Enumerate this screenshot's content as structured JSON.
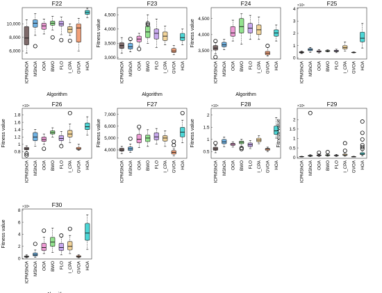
{
  "chart_data": [
    {
      "type": "box",
      "title": "F22",
      "xlabel": "Algorithm",
      "ylabel": "",
      "ylim": [
        4800,
        12400
      ],
      "yticks": [
        6000,
        8000,
        10000
      ],
      "ytick_labels": [
        "6,000",
        "8,000",
        "10,000"
      ],
      "categories": [
        "ICPMShOA",
        "MShOA",
        "OOA",
        "BWO",
        "FLO",
        "I_CPA",
        "GVOA",
        "HOA"
      ],
      "boxes": [
        {
          "min": 5700,
          "q1": 6900,
          "median": 7900,
          "q3": 9600,
          "max": 10600,
          "outliers": []
        },
        {
          "min": 8300,
          "q1": 9500,
          "median": 10100,
          "q3": 10600,
          "max": 11500,
          "outliers": [
            6700
          ]
        },
        {
          "min": 8500,
          "q1": 9200,
          "median": 9700,
          "q3": 10100,
          "max": 10700,
          "outliers": []
        },
        {
          "min": 9100,
          "q1": 9800,
          "median": 10100,
          "q3": 10400,
          "max": 11100,
          "outliers": [
            8000
          ]
        },
        {
          "min": 8400,
          "q1": 9700,
          "median": 10000,
          "q3": 10400,
          "max": 11000,
          "outliers": [
            7600
          ]
        },
        {
          "min": 8300,
          "q1": 8700,
          "median": 9200,
          "q3": 9600,
          "max": 10000,
          "outliers": [
            7500
          ]
        },
        {
          "min": 6000,
          "q1": 7300,
          "median": 9400,
          "q3": 10000,
          "max": 10800,
          "outliers": []
        },
        {
          "min": 10900,
          "q1": 11400,
          "median": 11700,
          "q3": 12000,
          "max": 12300,
          "outliers": []
        }
      ]
    },
    {
      "type": "box",
      "title": "F23",
      "xlabel": "Algorithm",
      "ylabel": "Fitness value",
      "ylim": [
        2950,
        4750
      ],
      "yticks": [
        3000,
        3500,
        4000,
        4500
      ],
      "ytick_labels": [
        "3,000",
        "3,500",
        "4,000",
        "4,500"
      ],
      "categories": [
        "ICPMShOA",
        "MShOA",
        "OOA",
        "BWO",
        "FLO",
        "I_CPA",
        "GVOA",
        "HOA"
      ],
      "boxes": [
        {
          "min": 3150,
          "q1": 3320,
          "median": 3420,
          "q3": 3520,
          "max": 3700,
          "outliers": []
        },
        {
          "min": 3200,
          "q1": 3300,
          "median": 3380,
          "q3": 3500,
          "max": 3600,
          "outliers": [
            3650
          ]
        },
        {
          "min": 3400,
          "q1": 3550,
          "median": 3650,
          "q3": 3750,
          "max": 3850,
          "outliers": [
            3300
          ]
        },
        {
          "min": 3500,
          "q1": 3700,
          "median": 3900,
          "q3": 4100,
          "max": 4500,
          "outliers": [
            4150,
            4200
          ]
        },
        {
          "min": 3350,
          "q1": 3650,
          "median": 3850,
          "q3": 4000,
          "max": 4350,
          "outliers": []
        },
        {
          "min": 3450,
          "q1": 3600,
          "median": 3750,
          "q3": 3900,
          "max": 4100,
          "outliers": []
        },
        {
          "min": 3100,
          "q1": 3180,
          "median": 3230,
          "q3": 3320,
          "max": 3420,
          "outliers": []
        },
        {
          "min": 3450,
          "q1": 3600,
          "median": 3700,
          "q3": 3850,
          "max": 4000,
          "outliers": []
        }
      ]
    },
    {
      "type": "box",
      "title": "F24",
      "xlabel": "Algorithm",
      "ylabel": "Fitness value",
      "ylim": [
        3240,
        4840
      ],
      "yticks": [
        3500,
        4000,
        4500
      ],
      "ytick_labels": [
        "3,500",
        "4,000",
        "4,500"
      ],
      "categories": [
        "ICPMShOA",
        "MShOA",
        "OOA",
        "BWO",
        "FLO",
        "I_CPA",
        "GVOA",
        "HOA"
      ],
      "boxes": [
        {
          "min": 3400,
          "q1": 3520,
          "median": 3580,
          "q3": 3660,
          "max": 3750,
          "outliers": [
            3800,
            3300
          ]
        },
        {
          "min": 3530,
          "q1": 3620,
          "median": 3680,
          "q3": 3760,
          "max": 3850,
          "outliers": []
        },
        {
          "min": 3800,
          "q1": 3950,
          "median": 4050,
          "q3": 4250,
          "max": 4450,
          "outliers": []
        },
        {
          "min": 3700,
          "q1": 4050,
          "median": 4250,
          "q3": 4500,
          "max": 4650,
          "outliers": []
        },
        {
          "min": 3850,
          "q1": 4050,
          "median": 4200,
          "q3": 4350,
          "max": 4600,
          "outliers": []
        },
        {
          "min": 3850,
          "q1": 4000,
          "median": 4150,
          "q3": 4300,
          "max": 4550,
          "outliers": []
        },
        {
          "min": 3330,
          "q1": 3370,
          "median": 3420,
          "q3": 3480,
          "max": 3600,
          "outliers": [
            3650
          ]
        },
        {
          "min": 3800,
          "q1": 3950,
          "median": 4050,
          "q3": 4150,
          "max": 4300,
          "outliers": []
        }
      ]
    },
    {
      "type": "box",
      "title": "F25",
      "xlabel": "",
      "ylabel": "",
      "multiplier": "×10⁴",
      "ylim": [
        -0.1,
        4.1
      ],
      "yticks": [
        0,
        1,
        2,
        3,
        4
      ],
      "ytick_labels": [
        "0",
        "1",
        "2",
        "3",
        "4"
      ],
      "categories": [
        "ICPMShOA",
        "MShOA",
        "OOA",
        "BWO",
        "FLO",
        "I_CPA",
        "GVOA",
        "HOA"
      ],
      "boxes": [
        {
          "min": 0.35,
          "q1": 0.4,
          "median": 0.44,
          "q3": 0.5,
          "max": 0.55,
          "outliers": []
        },
        {
          "min": 0.45,
          "q1": 0.58,
          "median": 0.66,
          "q3": 0.76,
          "max": 0.85,
          "outliers": []
        },
        {
          "min": 0.4,
          "q1": 0.47,
          "median": 0.52,
          "q3": 0.58,
          "max": 0.68,
          "outliers": []
        },
        {
          "min": 0.48,
          "q1": 0.52,
          "median": 0.56,
          "q3": 0.6,
          "max": 0.65,
          "outliers": []
        },
        {
          "min": 0.42,
          "q1": 0.5,
          "median": 0.55,
          "q3": 0.62,
          "max": 0.7,
          "outliers": []
        },
        {
          "min": 0.55,
          "q1": 0.72,
          "median": 0.85,
          "q3": 1.0,
          "max": 1.3,
          "outliers": []
        },
        {
          "min": 0.4,
          "q1": 0.42,
          "median": 0.44,
          "q3": 0.46,
          "max": 0.48,
          "outliers": []
        },
        {
          "min": 0.8,
          "q1": 1.3,
          "median": 1.6,
          "q3": 2.1,
          "max": 2.8,
          "outliers": []
        }
      ]
    },
    {
      "type": "box",
      "title": "F26",
      "xlabel": "",
      "ylabel": "Fitness value",
      "multiplier": "×10⁴",
      "ylim": [
        0.62,
        1.98
      ],
      "yticks": [
        0.8,
        1.0,
        1.2,
        1.4,
        1.6,
        1.8
      ],
      "ytick_labels": [
        "0.8",
        "1",
        "1.2",
        "1.4",
        "1.6",
        "1.8"
      ],
      "categories": [
        "ICPMShOA",
        "MShOA",
        "OOA",
        "BWO",
        "FLO",
        "I_CPA",
        "GVOA",
        "HOA"
      ],
      "boxes": [
        {
          "min": 0.8,
          "q1": 0.85,
          "median": 0.88,
          "q3": 0.92,
          "max": 0.96,
          "outliers": [
            0.75,
            0.7
          ]
        },
        {
          "min": 0.95,
          "q1": 1.1,
          "median": 1.2,
          "q3": 1.32,
          "max": 1.4,
          "outliers": []
        },
        {
          "min": 1.0,
          "q1": 1.08,
          "median": 1.13,
          "q3": 1.2,
          "max": 1.28,
          "outliers": [
            0.88
          ]
        },
        {
          "min": 1.2,
          "q1": 1.28,
          "median": 1.32,
          "q3": 1.37,
          "max": 1.45,
          "outliers": []
        },
        {
          "min": 1.0,
          "q1": 1.1,
          "median": 1.16,
          "q3": 1.24,
          "max": 1.35,
          "outliers": [
            0.95
          ]
        },
        {
          "min": 1.05,
          "q1": 1.2,
          "median": 1.28,
          "q3": 1.38,
          "max": 1.55,
          "outliers": [
            1.85
          ]
        },
        {
          "min": 0.84,
          "q1": 0.86,
          "median": 0.88,
          "q3": 0.92,
          "max": 1.0,
          "outliers": []
        },
        {
          "min": 1.25,
          "q1": 1.4,
          "median": 1.48,
          "q3": 1.58,
          "max": 1.75,
          "outliers": []
        }
      ]
    },
    {
      "type": "box",
      "title": "F27",
      "xlabel": "",
      "ylabel": "Fitness value",
      "ylim": [
        3300,
        7500
      ],
      "yticks": [
        4000,
        5000,
        6000,
        7000
      ],
      "ytick_labels": [
        "4,000",
        "5,000",
        "6,000",
        "7,000"
      ],
      "categories": [
        "ICPMShOA",
        "MShOA",
        "OOA",
        "BWO",
        "FLO",
        "I_CPA",
        "GVOA",
        "HOA"
      ],
      "boxes": [
        {
          "min": 3700,
          "q1": 3900,
          "median": 4000,
          "q3": 4150,
          "max": 4300,
          "outliers": []
        },
        {
          "min": 3800,
          "q1": 3950,
          "median": 4100,
          "q3": 4250,
          "max": 4500,
          "outliers": [
            4950
          ]
        },
        {
          "min": 4200,
          "q1": 4600,
          "median": 4900,
          "q3": 5300,
          "max": 5700,
          "outliers": [
            5950
          ]
        },
        {
          "min": 4300,
          "q1": 4700,
          "median": 5000,
          "q3": 5250,
          "max": 5700,
          "outliers": []
        },
        {
          "min": 4500,
          "q1": 4850,
          "median": 5100,
          "q3": 5450,
          "max": 5800,
          "outliers": []
        },
        {
          "min": 4300,
          "q1": 4750,
          "median": 5000,
          "q3": 5200,
          "max": 5600,
          "outliers": []
        },
        {
          "min": 3500,
          "q1": 3650,
          "median": 3800,
          "q3": 3950,
          "max": 4100,
          "outliers": [
            4400,
            4700
          ]
        },
        {
          "min": 4600,
          "q1": 5100,
          "median": 5500,
          "q3": 5900,
          "max": 6500,
          "outliers": [
            7100
          ]
        }
      ]
    },
    {
      "type": "box",
      "title": "F28",
      "xlabel": "",
      "ylabel": "Fitness value",
      "multiplier": "×10⁴",
      "ylim": [
        0.22,
        2.28
      ],
      "yticks": [
        0.5,
        1.0,
        1.5,
        2.0
      ],
      "ytick_labels": [
        "0.5",
        "1",
        "1.5",
        "2"
      ],
      "categories": [
        "ICPMShOA",
        "MShOA",
        "OOA",
        "BWO",
        "FLO",
        "I_CPA",
        "GVOA",
        "HOA"
      ],
      "boxes": [
        {
          "min": 0.45,
          "q1": 0.55,
          "median": 0.6,
          "q3": 0.68,
          "max": 0.75,
          "outliers": [
            0.85
          ]
        },
        {
          "min": 0.7,
          "q1": 0.82,
          "median": 0.9,
          "q3": 1.0,
          "max": 1.1,
          "outliers": []
        },
        {
          "min": 0.68,
          "q1": 0.75,
          "median": 0.8,
          "q3": 0.84,
          "max": 0.9,
          "outliers": []
        },
        {
          "min": 0.7,
          "q1": 0.82,
          "median": 0.88,
          "q3": 0.93,
          "max": 1.0,
          "outliers": [
            0.65,
            0.6
          ]
        },
        {
          "min": 0.62,
          "q1": 0.7,
          "median": 0.78,
          "q3": 0.85,
          "max": 0.95,
          "outliers": []
        },
        {
          "min": 0.82,
          "q1": 0.9,
          "median": 0.97,
          "q3": 1.05,
          "max": 1.15,
          "outliers": []
        },
        {
          "min": 0.5,
          "q1": 0.55,
          "median": 0.6,
          "q3": 0.63,
          "max": 0.68,
          "outliers": []
        },
        {
          "min": 1.05,
          "q1": 1.2,
          "median": 1.35,
          "q3": 1.55,
          "max": 1.9,
          "outliers": []
        }
      ]
    },
    {
      "type": "box",
      "title": "F29",
      "xlabel": "",
      "ylabel": "Fitness value",
      "multiplier": "×10⁵",
      "ylim": [
        -0.05,
        2.6
      ],
      "yticks": [
        0,
        0.5,
        1.0,
        1.5,
        2.0
      ],
      "ytick_labels": [
        "0",
        "0.5",
        "1",
        "1.5",
        "2"
      ],
      "categories": [
        "ICPMShOA",
        "MShOA",
        "OOA",
        "BWO",
        "FLO",
        "I_CPA",
        "GVOA",
        "HOA"
      ],
      "boxes": [
        {
          "min": 0.02,
          "q1": 0.03,
          "median": 0.04,
          "q3": 0.05,
          "max": 0.06,
          "outliers": []
        },
        {
          "min": 0.04,
          "q1": 0.06,
          "median": 0.08,
          "q3": 0.11,
          "max": 0.14,
          "outliers": [
            2.35
          ]
        },
        {
          "min": 0.05,
          "q1": 0.08,
          "median": 0.1,
          "q3": 0.13,
          "max": 0.18,
          "outliers": [
            0.25
          ]
        },
        {
          "min": 0.06,
          "q1": 0.09,
          "median": 0.11,
          "q3": 0.14,
          "max": 0.18,
          "outliers": [
            0.28
          ]
        },
        {
          "min": 0.05,
          "q1": 0.08,
          "median": 0.1,
          "q3": 0.12,
          "max": 0.16,
          "outliers": []
        },
        {
          "min": 0.06,
          "q1": 0.1,
          "median": 0.13,
          "q3": 0.18,
          "max": 0.25,
          "outliers": [
            0.35,
            0.75
          ]
        },
        {
          "min": 0.02,
          "q1": 0.03,
          "median": 0.035,
          "q3": 0.045,
          "max": 0.06,
          "outliers": []
        },
        {
          "min": 0.08,
          "q1": 0.14,
          "median": 0.18,
          "q3": 0.25,
          "max": 0.35,
          "outliers": [
            0.45,
            0.55,
            0.65,
            0.95,
            1.3,
            1.9
          ]
        }
      ]
    },
    {
      "type": "box",
      "title": "F30",
      "xlabel": "Algorithm",
      "ylabel": "Fitness value",
      "multiplier": "×10⁶",
      "ylim": [
        -0.1,
        8.2
      ],
      "yticks": [
        0,
        2,
        4,
        6,
        8
      ],
      "ytick_labels": [
        "0",
        "2",
        "4",
        "6",
        "8"
      ],
      "categories": [
        "ICPMShOA",
        "MShOA",
        "OOA",
        "BWO",
        "FLO",
        "I_CPA",
        "GVOA",
        "HOA"
      ],
      "boxes": [
        {
          "min": 0.1,
          "q1": 0.2,
          "median": 0.3,
          "q3": 0.4,
          "max": 0.6,
          "outliers": []
        },
        {
          "min": 0.2,
          "q1": 0.4,
          "median": 0.6,
          "q3": 0.9,
          "max": 1.4,
          "outliers": [
            2.4
          ]
        },
        {
          "min": 0.8,
          "q1": 1.3,
          "median": 1.8,
          "q3": 2.5,
          "max": 3.5,
          "outliers": [
            4.6
          ]
        },
        {
          "min": 1.0,
          "q1": 2.0,
          "median": 2.7,
          "q3": 3.5,
          "max": 5.0,
          "outliers": []
        },
        {
          "min": 0.6,
          "q1": 1.3,
          "median": 1.8,
          "q3": 2.5,
          "max": 3.5,
          "outliers": [
            3.8
          ]
        },
        {
          "min": 0.8,
          "q1": 1.4,
          "median": 2.0,
          "q3": 2.8,
          "max": 3.8,
          "outliers": [
            4.9
          ]
        },
        {
          "min": 0.1,
          "q1": 0.2,
          "median": 0.3,
          "q3": 0.45,
          "max": 0.6,
          "outliers": []
        },
        {
          "min": 1.5,
          "q1": 3.0,
          "median": 4.2,
          "q3": 5.8,
          "max": 7.2,
          "outliers": []
        }
      ]
    }
  ],
  "colors": [
    "#7e6a6a",
    "#6fb3e5",
    "#ee9ad5",
    "#92e28e",
    "#c7a8ee",
    "#f2d49a",
    "#f2a078",
    "#4cd6d6"
  ]
}
